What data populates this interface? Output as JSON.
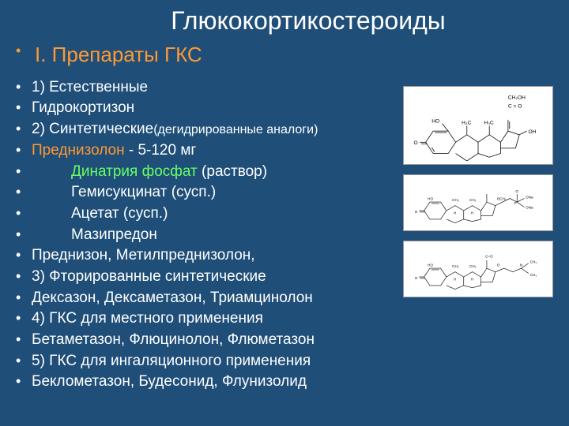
{
  "title": "Глюкокортикостероиды",
  "subtitle_bullet": "•",
  "subtitle": "I. Препараты ГКС",
  "lines": [
    {
      "bullet": "•",
      "cls": "white",
      "indent": "",
      "text": "1) Естественные"
    },
    {
      "bullet": "•",
      "cls": "white",
      "indent": "",
      "text": "Гидрокортизон"
    },
    {
      "bullet": "•",
      "cls": "white",
      "indent": "",
      "text": "2) Синтетические",
      "paren": "(дегидрированные аналоги)"
    },
    {
      "bullet": "•",
      "cls": "orange",
      "indent": "",
      "text": "Преднизолон",
      "suffix": " - 5-120 мг",
      "suffix_cls": "white"
    },
    {
      "bullet": "•",
      "cls": "green",
      "indent": "indent1",
      "text": "Динатрия фосфат",
      "suffix": " (раствор)",
      "suffix_cls": "white"
    },
    {
      "bullet": "•",
      "cls": "white",
      "indent": "indent1",
      "text": "Гемисукцинат (сусп.)"
    },
    {
      "bullet": "•",
      "cls": "white",
      "indent": "indent1",
      "text": "Ацетат (сусп.)"
    },
    {
      "bullet": "•",
      "cls": "white",
      "indent": "indent1",
      "text": "Мазипредон"
    },
    {
      "bullet": "•",
      "cls": "white",
      "indent": "",
      "text": "Преднизон, Метилпреднизолон,"
    },
    {
      "bullet": "•",
      "cls": "white",
      "indent": "",
      "text": "3) Фторированные синтетические"
    },
    {
      "bullet": "•",
      "cls": "white",
      "indent": "",
      "text": "Дексазон, Дексаметазон, Триамцинолон"
    },
    {
      "bullet": "•",
      "cls": "white",
      "indent": "",
      "text": "4) ГКС для местного применения"
    },
    {
      "bullet": "•",
      "cls": "white",
      "indent": "",
      "text": "Бетаметазон, Флюцинолон, Флюметазон"
    },
    {
      "bullet": "•",
      "cls": "white",
      "indent": "",
      "text": "5) ГКС для ингаляционного применения"
    },
    {
      "bullet": "•",
      "cls": "white",
      "indent": "",
      "text": "Беклометазон, Будесонид, Флунизолид"
    }
  ],
  "chem_labels": {
    "c1": {
      "ch2oh": "CH₂OH",
      "co": "C = O",
      "oh": "OH",
      "h3c1": "H₃C",
      "h3c2": "H₃C",
      "ho": "HO",
      "o": "O"
    },
    "c2": {
      "ho": "HO",
      "ch3": "CH₃",
      "h": "H",
      "ona": "ONa",
      "p": "P",
      "o": "O",
      "och2": "OCH₂"
    },
    "c3": {
      "ho": "HO",
      "ch3": "CH₃",
      "h": "H",
      "o": "O",
      "n": "N",
      "co": "C=O"
    }
  },
  "colors": {
    "bg": "#1f4e79",
    "white": "#ffffff",
    "orange": "#ff9933",
    "green": "#66ff66"
  }
}
